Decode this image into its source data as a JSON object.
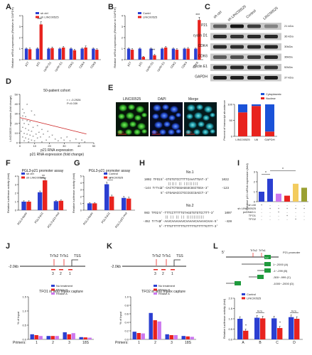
{
  "panel_letters": [
    "A",
    "B",
    "C",
    "D",
    "E",
    "F",
    "G",
    "H",
    "I",
    "J",
    "K",
    "L"
  ],
  "colors": {
    "ctrl": "#2b3fd1",
    "treat": "#e8231e",
    "noTreat": "#2b3fd1",
    "rnaseH": "#e8231e",
    "rnaseA": "#cc77ee",
    "gapdh": "#1a52d8",
    "cyto": "#1a52d8",
    "nucl": "#e8231e",
    "fitline": "#cc2222"
  },
  "chart_data": [
    {
      "id": "A",
      "type": "bar",
      "ylabel": "Relative mRNA expression (Relative to GAPDH)",
      "categories": [
        "p27",
        "p21",
        "cyclin D1",
        "cyclin E1",
        "CDK2",
        "CDK4",
        "CDK6"
      ],
      "ylim": [
        0,
        4
      ],
      "yticks": [
        "0",
        "1",
        "2",
        "3",
        "4"
      ],
      "series": [
        {
          "name": "sh ctrl",
          "values": [
            1.0,
            1.0,
            1.0,
            1.0,
            1.0,
            1.0,
            1.0
          ],
          "err": [
            0.05,
            0.08,
            0.07,
            0.06,
            0.06,
            0.07,
            0.06
          ]
        },
        {
          "name": "sh LINC00525",
          "values": [
            0.95,
            3.2,
            1.05,
            1.1,
            0.85,
            1.1,
            0.9
          ],
          "err": [
            0.1,
            0.25,
            0.1,
            0.1,
            0.1,
            0.15,
            0.1
          ]
        }
      ],
      "annotations": [
        "***"
      ]
    },
    {
      "id": "B",
      "type": "bar",
      "ylabel": "Relative mRNA expression (Relative to GAPDH)",
      "categories": [
        "p27",
        "p21",
        "cyclin D1",
        "cyclin E1",
        "CDK2",
        "CDK4",
        "CDK6"
      ],
      "ylim": [
        0,
        4
      ],
      "yticks": [
        "0",
        "1",
        "2",
        "3",
        "4"
      ],
      "series": [
        {
          "name": "Contrl",
          "values": [
            1.0,
            1.0,
            1.0,
            1.0,
            1.0,
            1.0,
            1.0
          ],
          "err": [
            0.05,
            0.05,
            0.05,
            0.05,
            0.05,
            0.05,
            0.05
          ]
        },
        {
          "name": "LINC00525",
          "values": [
            0.9,
            0.25,
            0.4,
            1.1,
            0.9,
            1.0,
            3.6
          ],
          "err": [
            0.1,
            0.05,
            0.08,
            0.1,
            0.1,
            0.1,
            0.25
          ]
        }
      ],
      "annotations": [
        "***",
        "***"
      ]
    },
    {
      "id": "D",
      "type": "scatter",
      "title": "50-patient cohort",
      "xlabel": "p21 RNA expression (fold change)",
      "ylabel": "LINC00525 expression (fold change)",
      "xlim": [
        0,
        50
      ],
      "ylim": [
        0,
        50
      ],
      "xticks": [
        "0",
        "10",
        "20",
        "30",
        "40",
        "50"
      ],
      "yticks": [
        "0",
        "10",
        "20",
        "30",
        "40",
        "50"
      ],
      "stats": [
        "r = -0.2926",
        "P=0.039"
      ],
      "fit": {
        "x1": 0,
        "y1": 26,
        "x2": 45,
        "y2": 9
      },
      "points": [
        [
          2,
          35
        ],
        [
          3,
          31
        ],
        [
          2,
          28
        ],
        [
          4,
          27
        ],
        [
          2,
          24
        ],
        [
          5,
          23
        ],
        [
          3,
          20
        ],
        [
          6,
          19
        ],
        [
          2,
          16
        ],
        [
          4,
          15
        ],
        [
          6,
          13
        ],
        [
          8,
          12
        ],
        [
          3,
          10
        ],
        [
          5,
          9
        ],
        [
          7,
          8
        ],
        [
          9,
          7
        ],
        [
          2,
          6
        ],
        [
          4,
          5
        ],
        [
          6,
          4
        ],
        [
          8,
          3
        ],
        [
          10,
          2
        ],
        [
          12,
          5
        ],
        [
          14,
          6
        ],
        [
          11,
          9
        ],
        [
          13,
          11
        ],
        [
          15,
          14
        ],
        [
          9,
          16
        ],
        [
          7,
          22
        ],
        [
          12,
          18
        ],
        [
          18,
          3
        ],
        [
          20,
          6
        ],
        [
          22,
          8
        ],
        [
          16,
          9
        ],
        [
          24,
          4
        ],
        [
          26,
          2
        ],
        [
          28,
          5
        ],
        [
          30,
          3
        ],
        [
          32,
          6
        ],
        [
          34,
          2
        ],
        [
          38,
          4
        ],
        [
          42,
          3
        ],
        [
          44,
          1
        ],
        [
          5,
          40
        ],
        [
          8,
          33
        ],
        [
          10,
          29
        ],
        [
          3,
          2
        ],
        [
          6,
          1
        ],
        [
          15,
          1
        ],
        [
          19,
          12
        ],
        [
          1,
          12
        ]
      ]
    },
    {
      "id": "E",
      "type": "bar",
      "ylabel": "Percent of transcript abundance",
      "categories": [
        "LINC00525",
        "U6",
        "GAPDH"
      ],
      "ylim": [
        0,
        100
      ],
      "series": [
        {
          "name": "Cytoplasmic",
          "values": [
            25,
            5,
            85
          ]
        },
        {
          "name": "Nuclear",
          "values": [
            75,
            95,
            15
          ]
        }
      ],
      "images": [
        "LINC00525",
        "DAPI",
        "Merge"
      ]
    },
    {
      "id": "F",
      "type": "bar",
      "title": "PGL3-p21 promoter assay",
      "ylabel": "Relative luciferase activity (fold)",
      "categories": [
        "PGL3-basic",
        "PGL3-p21",
        "PGL3-p21-mut"
      ],
      "ylim": [
        0,
        4
      ],
      "series": [
        {
          "name": "sh ctrl",
          "values": [
            1.0,
            2.1,
            1.05
          ],
          "err": [
            0.1,
            0.15,
            0.1
          ]
        },
        {
          "name": "sh LINC00525",
          "values": [
            1.0,
            3.5,
            1.1
          ],
          "err": [
            0.1,
            0.2,
            0.1
          ]
        }
      ],
      "annotations": [
        "**"
      ]
    },
    {
      "id": "G",
      "type": "bar",
      "title": "PGL3-p21 promoter assay",
      "ylabel": "Relative luciferase activity (fold)",
      "categories": [
        "PGL3-basic",
        "PGL3-p21",
        "PGL3-p21-mut"
      ],
      "ylim": [
        0,
        5
      ],
      "series": [
        {
          "name": "Control",
          "values": [
            1.0,
            3.8,
            1.8
          ],
          "err": [
            0.1,
            0.3,
            0.2
          ]
        },
        {
          "name": "LINC00525",
          "values": [
            1.0,
            2.0,
            1.7
          ],
          "err": [
            0.1,
            0.2,
            0.2
          ]
        }
      ],
      "annotations": [
        "*"
      ]
    },
    {
      "id": "I",
      "type": "bar",
      "ylabel": "Relative p21 mRNA expression (fold)",
      "categories": [
        "1",
        "2",
        "3",
        "4",
        "5",
        "6"
      ],
      "ylim": [
        0,
        3
      ],
      "values": [
        1.0,
        2.3,
        0.8,
        0.6,
        1.8,
        1.4
      ],
      "bar_colors": [
        "#2b3fd1",
        "#2b3fd1",
        "#cc77ee",
        "#e8231e",
        "#f3cc5e",
        "#9aa032"
      ],
      "rows": [
        {
          "label": "sh ctrl",
          "marks": [
            "+",
            "-",
            "-",
            "-",
            "-",
            "-"
          ]
        },
        {
          "label": "sh LINC00525",
          "marks": [
            "-",
            "+",
            "+",
            "+",
            "+",
            "+"
          ]
        },
        {
          "label": "pcDNA3.1",
          "marks": [
            "-",
            "-",
            "+",
            "-",
            "-",
            "-"
          ]
        },
        {
          "label": "TFO1",
          "marks": [
            "-",
            "-",
            "-",
            "+",
            "-",
            "-"
          ]
        },
        {
          "label": "TFO2",
          "marks": [
            "-",
            "-",
            "-",
            "-",
            "+",
            "-"
          ]
        }
      ],
      "annotations": [
        "*",
        "*"
      ]
    },
    {
      "id": "J",
      "type": "bar",
      "title": "TFO1 in vitro triplex capture",
      "ylabel": "% of Input",
      "categories": [
        "1",
        "2",
        "3",
        "18S"
      ],
      "ylim": [
        0,
        1.5
      ],
      "yticks": [
        "0.0",
        "0.5",
        "1.0",
        "1.5"
      ],
      "xprefix": "Primers:",
      "series": [
        {
          "name": "No treatment",
          "values": [
            0.18,
            0.12,
            0.25,
            0.08
          ]
        },
        {
          "name": "RNase H",
          "values": [
            0.15,
            0.12,
            0.18,
            0.07
          ]
        },
        {
          "name": "RNase A",
          "values": [
            0.12,
            0.12,
            0.22,
            0.06
          ]
        }
      ]
    },
    {
      "id": "K",
      "type": "bar",
      "title": "TFO2 in vitro triplex capture",
      "ylabel": "% of Input",
      "categories": [
        "1",
        "2",
        "3",
        "18S"
      ],
      "ylim": [
        0,
        1.0
      ],
      "yticks": [
        "0.0",
        "0.2",
        "0.4",
        "0.6",
        "0.8",
        "1.0"
      ],
      "xprefix": "Primers:",
      "series": [
        {
          "name": "No treatment",
          "values": [
            0.18,
            0.62,
            0.12,
            0.08
          ]
        },
        {
          "name": "RNase H",
          "values": [
            0.15,
            0.45,
            0.1,
            0.07
          ]
        },
        {
          "name": "RNase A",
          "values": [
            0.14,
            0.42,
            0.1,
            0.06
          ]
        }
      ]
    },
    {
      "id": "L",
      "type": "bar",
      "ylabel": "Relative luciferase activity (fold)",
      "categories": [
        "A",
        "B",
        "C",
        "D"
      ],
      "ylim": [
        0,
        2.0
      ],
      "yticks": [
        "0.0",
        "0.5",
        "1.0",
        "1.5",
        "2.0"
      ],
      "series": [
        {
          "name": "Control",
          "values": [
            1.0,
            1.05,
            1.02,
            1.08
          ],
          "err": [
            0.1,
            0.1,
            0.1,
            0.1
          ]
        },
        {
          "name": "LINC00525",
          "values": [
            0.42,
            1.02,
            0.55,
            1.0
          ],
          "err": [
            0.08,
            0.1,
            0.08,
            0.1
          ]
        }
      ],
      "annotations": [
        "*",
        "N.S.",
        "*",
        "N.S."
      ]
    }
  ],
  "panel_c": {
    "headers": [
      "sh ctrl",
      "sh LINC00525",
      "Control",
      "LINC00525"
    ],
    "rows": [
      "P21",
      "cyclin D1",
      "CDK4",
      "CDK6",
      "cyclin E1",
      "GAPDH"
    ],
    "sizes": [
      "21 kDa",
      "36 kDa",
      "30kDa",
      "36kDa",
      "52kDa",
      "37 kDa"
    ]
  },
  "panel_e": {
    "scale_label": "20 μm",
    "legend": [
      "Cytoplasmic",
      "Nuclear"
    ]
  },
  "panel_h": {
    "block1": {
      "title": "No.1",
      "top_left": "1002 TFO1",
      "top_seq": "5'-GTGTGTCCTTTTCAAATTGAT-3'",
      "top_right": "1022",
      "bars": "|||||  ||   ||||||||",
      "bottom_left": "-144 TrTs1",
      "bottom_seq": "3'-CACTCTGGGAGGGCGGCTGGA-3'",
      "bottom_right": "-123",
      "bottom_seq2": "5'-GTGAGACCCTCCCGCCGACCT-3'"
    },
    "block2": {
      "title": "No.2",
      "top_left": "983 TFO2",
      "top_seq": "5'-TTTCCTTTTTGTAGGTGTGTCCTTT-3'",
      "top_right": "1007",
      "bars": "||  ||   || || ||||||||||",
      "bottom_left": "-452 TrTs2",
      "bottom_seq": "3'-AAACAAAAAAACAAAAACAAAAACAAA-5'",
      "bottom_right": "-428",
      "bottom_seq2": "5'-TTTGTTTTTTTGTTTTTGTTTTTGTTT-3'"
    }
  },
  "panel_j": {
    "scheme_left": "-2.0kb",
    "labels": [
      "TrTs2",
      "TrTs1",
      "TSS"
    ],
    "primer_nums": [
      "3",
      "2",
      "1"
    ]
  },
  "panel_k": {
    "scheme_left": "-2.0kb",
    "labels": [
      "TrTs2",
      "TrTs1",
      "TSS"
    ],
    "primer_nums": [
      "3",
      "2",
      "1"
    ]
  },
  "panel_l": {
    "scheme_left": "5'",
    "labels": [
      "TrTs2",
      "TrTs1",
      "P21 promoter"
    ],
    "luc": "Luc",
    "constructs": [
      "1~-2000 (A)",
      "-1~-299 (B)",
      "-300~-999 (C)",
      "-1000~-2000 (D)"
    ]
  }
}
